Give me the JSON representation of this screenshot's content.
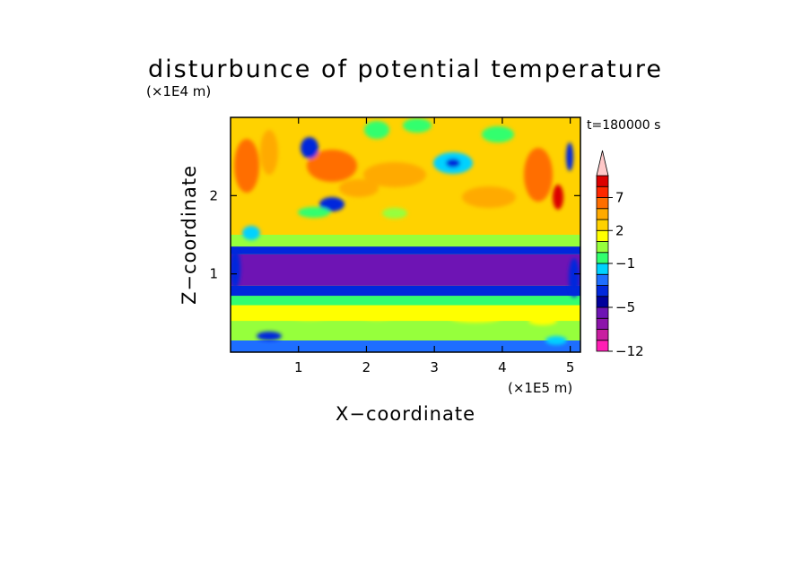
{
  "chart_data": {
    "type": "heatmap",
    "title": "disturbunce of potential temperature",
    "xlabel": "X−coordinate",
    "ylabel": "Z−coordinate",
    "x_unit": "(×1E5 m)",
    "y_unit": "(×1E4 m)",
    "time_label": "t=180000 s",
    "xlim": [
      0,
      5.15
    ],
    "ylim": [
      0,
      3.0
    ],
    "x_ticks": [
      1,
      2,
      3,
      4,
      5
    ],
    "y_ticks": [
      1,
      2
    ],
    "x_tick_labels": [
      "1",
      "2",
      "3",
      "4",
      "5"
    ],
    "y_tick_labels": [
      "1",
      "2"
    ],
    "colorbar": {
      "levels": [
        -12,
        -10,
        -8,
        -6,
        -5,
        -4,
        -3,
        -2,
        -1,
        0,
        1,
        2,
        3,
        5,
        7,
        8,
        9,
        10
      ],
      "labeled_ticks": [
        {
          "value": -12,
          "label": "−12"
        },
        {
          "value": -5,
          "label": "−5"
        },
        {
          "value": -1,
          "label": "−1"
        },
        {
          "value": 2,
          "label": "2"
        },
        {
          "value": 7,
          "label": "7"
        }
      ],
      "colors": [
        "#ff1eb4",
        "#c81ea0",
        "#8c14aa",
        "#6e14b4",
        "#00009b",
        "#0028dc",
        "#1e6eff",
        "#00d2ff",
        "#32ff6e",
        "#96ff3c",
        "#ffff00",
        "#ffd200",
        "#ffaa00",
        "#ff6e00",
        "#ff2800",
        "#dc0000",
        "#ffc8c8"
      ],
      "extend": "max"
    },
    "bands": [
      {
        "z_range": [
          0.0,
          0.15
        ],
        "value": -2.5
      },
      {
        "z_range": [
          0.15,
          0.4
        ],
        "value": 0.5
      },
      {
        "z_range": [
          0.4,
          0.6
        ],
        "value": 1.5
      },
      {
        "z_range": [
          0.6,
          0.72
        ],
        "value": -0.5
      },
      {
        "z_range": [
          0.72,
          0.85
        ],
        "value": -3.5
      },
      {
        "z_range": [
          0.85,
          1.25
        ],
        "value": -5.5
      },
      {
        "z_range": [
          1.25,
          1.35
        ],
        "value": -3.5
      },
      {
        "z_range": [
          1.35,
          1.5
        ],
        "value": 0.5
      },
      {
        "z_range": [
          1.5,
          3.0
        ],
        "value": 2.5
      }
    ]
  }
}
